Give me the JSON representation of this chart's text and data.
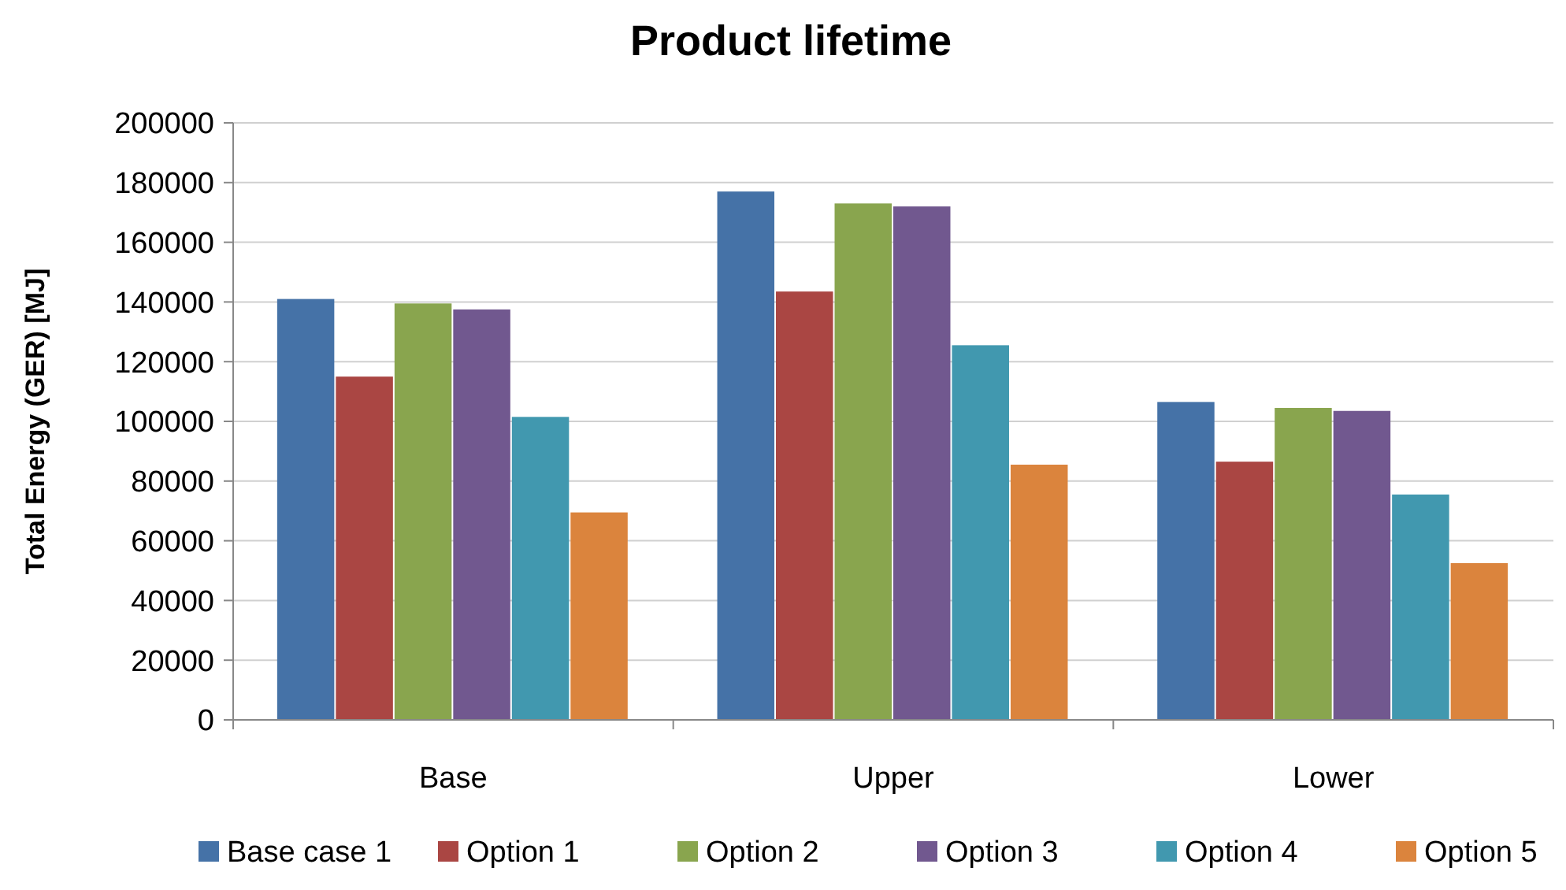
{
  "chart_data": {
    "type": "bar",
    "title": "Product lifetime",
    "ylabel": "Total Energy (GER) [MJ]",
    "categories": [
      "Base",
      "Upper",
      "Lower"
    ],
    "series": [
      {
        "name": "Base case 1",
        "color": "#4572a7",
        "values": [
          141000,
          177000,
          106500
        ]
      },
      {
        "name": "Option 1",
        "color": "#aa4643",
        "values": [
          115000,
          143500,
          86500
        ]
      },
      {
        "name": "Option 2",
        "color": "#89a54e",
        "values": [
          139500,
          173000,
          104500
        ]
      },
      {
        "name": "Option 3",
        "color": "#71588f",
        "values": [
          137500,
          172000,
          103500
        ]
      },
      {
        "name": "Option 4",
        "color": "#4198af",
        "values": [
          101500,
          125500,
          75500
        ]
      },
      {
        "name": "Option 5",
        "color": "#db843d",
        "values": [
          69500,
          85500,
          52500
        ]
      }
    ],
    "ylim": [
      0,
      200000
    ],
    "yticks": [
      0,
      20000,
      40000,
      60000,
      80000,
      100000,
      120000,
      140000,
      160000,
      180000,
      200000
    ],
    "grid": "y",
    "legend": "bottom"
  }
}
